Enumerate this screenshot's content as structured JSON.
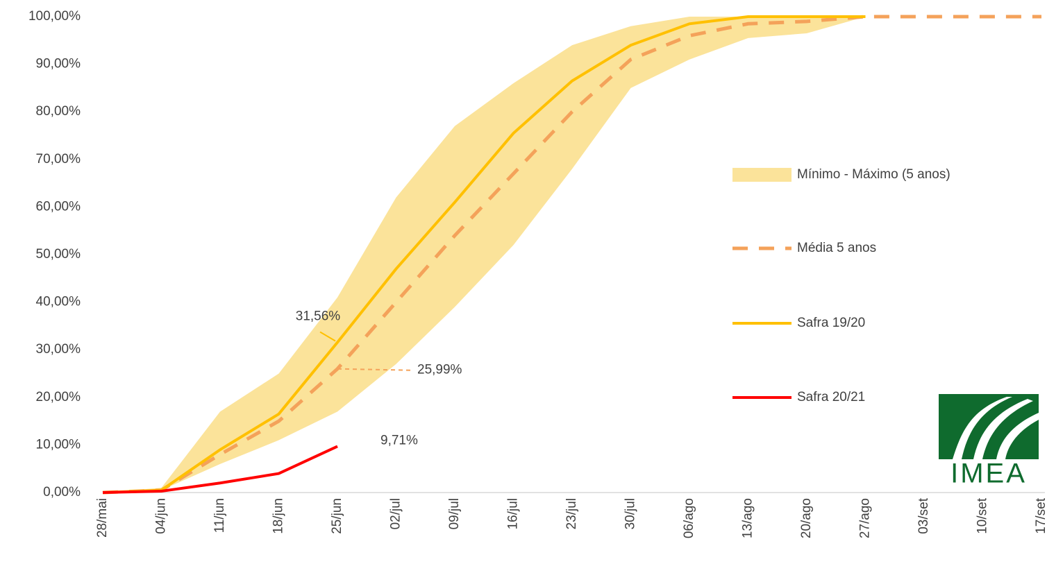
{
  "chart_data": {
    "type": "line",
    "categories": [
      "28/mai",
      "04/jun",
      "11/jun",
      "18/jun",
      "25/jun",
      "02/jul",
      "09/jul",
      "16/jul",
      "23/jul",
      "30/jul",
      "06/ago",
      "13/ago",
      "20/ago",
      "27/ago",
      "03/set",
      "10/set",
      "17/set"
    ],
    "ylim": [
      0,
      100
    ],
    "yticks": [
      {
        "value": 0,
        "label": "0,00%"
      },
      {
        "value": 10,
        "label": "10,00%"
      },
      {
        "value": 20,
        "label": "20,00%"
      },
      {
        "value": 30,
        "label": "30,00%"
      },
      {
        "value": 40,
        "label": "40,00%"
      },
      {
        "value": 50,
        "label": "50,00%"
      },
      {
        "value": 60,
        "label": "60,00%"
      },
      {
        "value": 70,
        "label": "70,00%"
      },
      {
        "value": 80,
        "label": "80,00%"
      },
      {
        "value": 90,
        "label": "90,00%"
      },
      {
        "value": 100,
        "label": "100,00%"
      }
    ],
    "band": {
      "name": "Mínimo - Máximo (5 anos)",
      "color": "#fbe39a",
      "min": [
        0,
        0.5,
        6,
        11,
        17,
        27,
        39,
        52,
        68,
        85,
        91,
        95.5,
        96.5,
        100,
        null,
        null,
        null
      ],
      "max": [
        0,
        1,
        17,
        25,
        41,
        62,
        77,
        86,
        94,
        98,
        100,
        100,
        100,
        100,
        null,
        null,
        null
      ]
    },
    "series": [
      {
        "name": "Média 5 anos",
        "color": "#f4a25a",
        "dashed": true,
        "values": [
          0,
          0.5,
          8,
          15,
          25.99,
          40,
          54,
          67,
          80,
          91,
          96,
          98.5,
          99,
          100,
          100,
          100,
          100
        ],
        "value_labels": [
          null,
          null,
          null,
          null,
          "25,99%",
          null,
          null,
          null,
          null,
          null,
          null,
          null,
          null,
          null,
          null,
          null,
          null
        ]
      },
      {
        "name": "Safra 19/20",
        "color": "#ffc000",
        "dashed": false,
        "values": [
          0,
          0.5,
          9,
          16.5,
          31.56,
          47,
          61,
          75.5,
          86.5,
          94,
          98.5,
          100,
          100,
          100,
          null,
          null,
          null
        ],
        "value_labels": [
          null,
          null,
          null,
          null,
          "31,56%",
          null,
          null,
          null,
          null,
          null,
          null,
          null,
          null,
          null,
          null,
          null,
          null
        ]
      },
      {
        "name": "Safra 20/21",
        "color": "#ff0000",
        "dashed": false,
        "values": [
          0,
          0.3,
          2,
          4,
          9.71,
          null,
          null,
          null,
          null,
          null,
          null,
          null,
          null,
          null,
          null,
          null,
          null
        ],
        "value_labels": [
          null,
          null,
          null,
          null,
          "9,71%",
          null,
          null,
          null,
          null,
          null,
          null,
          null,
          null,
          null,
          null,
          null,
          null
        ]
      }
    ],
    "logo_text": "IMEA"
  }
}
